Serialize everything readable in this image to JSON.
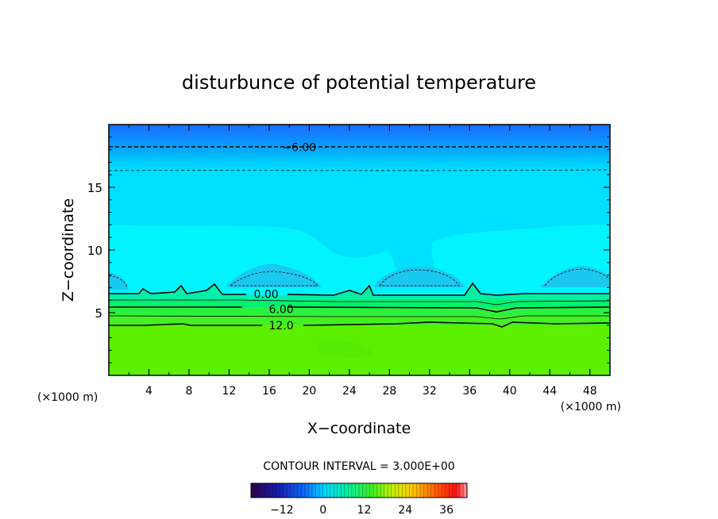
{
  "chart_data": {
    "type": "contour",
    "title": "disturbunce of potential temperature",
    "xlabel": "X−coordinate",
    "ylabel": "Z−coordinate",
    "x_unit": "(×1000 m)",
    "z_unit": "(×1000 m)",
    "xlim": [
      0,
      50
    ],
    "ylim": [
      0,
      20
    ],
    "x_ticks": [
      "4",
      "8",
      "12",
      "16",
      "20",
      "24",
      "28",
      "32",
      "36",
      "40",
      "44",
      "48"
    ],
    "y_ticks": [
      "5",
      "10",
      "15"
    ],
    "contour_interval_label": "CONTOUR INTERVAL = 3.000E+00",
    "contour_labels": [
      {
        "text": "−6.00",
        "x": 19,
        "z": 18.2
      },
      {
        "text": "0.00",
        "x": 15.7,
        "z": 6.5
      },
      {
        "text": "6.00",
        "x": 17.2,
        "z": 5.3
      },
      {
        "text": "12.0",
        "x": 17.2,
        "z": 4.0
      }
    ],
    "contour_levels": [
      -6,
      -3,
      0,
      3,
      6,
      9,
      12
    ],
    "colorbar": {
      "min": -21,
      "max": 42,
      "ticks": [
        "−12",
        "0",
        "12",
        "24",
        "36"
      ],
      "tick_values": [
        -12,
        0,
        12,
        24,
        36
      ]
    }
  }
}
